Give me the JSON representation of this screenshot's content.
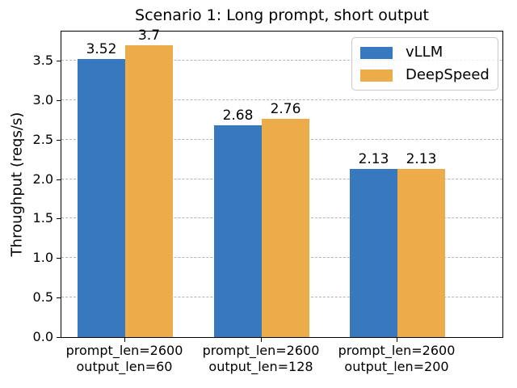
{
  "chart_data": {
    "type": "bar",
    "title": "Scenario 1: Long prompt, short output",
    "xlabel": "",
    "ylabel": "Throughput (reqs/s)",
    "categories": [
      "prompt_len=2600\noutput_len=60",
      "prompt_len=2600\noutput_len=128",
      "prompt_len=2600\noutput_len=200"
    ],
    "series": [
      {
        "name": "vLLM",
        "color": "#3878be",
        "values": [
          3.52,
          2.68,
          2.13
        ],
        "value_labels": [
          "3.52",
          "2.68",
          "2.13"
        ]
      },
      {
        "name": "DeepSpeed",
        "color": "#ecac4a",
        "values": [
          3.7,
          2.76,
          2.13
        ],
        "value_labels": [
          "3.7",
          "2.76",
          "2.13"
        ]
      }
    ],
    "yticks": [
      "0.0",
      "0.5",
      "1.0",
      "1.5",
      "2.0",
      "2.5",
      "3.0",
      "3.5"
    ],
    "ylim": [
      0,
      3.89
    ],
    "grid": {
      "horizontal": true,
      "style": "dashed",
      "color": "#b4b4b4"
    },
    "legend_position": "upper right"
  }
}
